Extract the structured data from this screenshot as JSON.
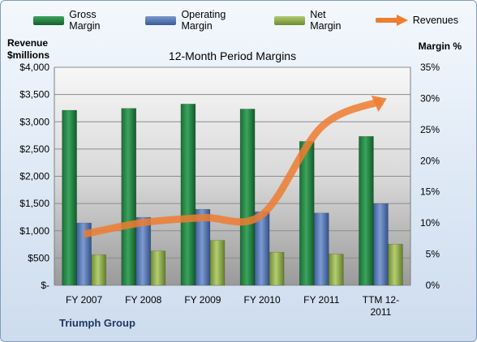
{
  "legend": {
    "items": [
      {
        "label": "Gross Margin",
        "color": "#1e7a3c"
      },
      {
        "label": "Operating Margin",
        "color": "#4f72b0"
      },
      {
        "label": "Net Margin",
        "color": "#8fae48"
      },
      {
        "label": "Revenues",
        "color": "#ed7d31"
      }
    ]
  },
  "company": "Triumph Group",
  "chart_data": {
    "type": "bar",
    "title": "12-Month Period Margins",
    "ylabel_left": [
      "Revenue",
      "$millions"
    ],
    "ylabel_right": "Margin %",
    "categories": [
      [
        "FY 2007"
      ],
      [
        "FY 2008"
      ],
      [
        "FY 2009"
      ],
      [
        "FY 2010"
      ],
      [
        "FY 2011"
      ],
      [
        "TTM 12-",
        "2011"
      ]
    ],
    "left_axis": {
      "min": 0,
      "max": 4000,
      "ticks": [
        "$-",
        "$500",
        "$1,000",
        "$1,500",
        "$2,000",
        "$2,500",
        "$3,000",
        "$3,500",
        "$4,000"
      ]
    },
    "right_axis": {
      "min": 0,
      "max": 35,
      "ticks": [
        "0%",
        "5%",
        "10%",
        "15%",
        "20%",
        "25%",
        "30%",
        "35%"
      ]
    },
    "series": [
      {
        "name": "Gross Margin",
        "axis": "right",
        "kind": "bar",
        "color": "#1e7a3c",
        "values": [
          28.1,
          28.4,
          29.1,
          28.3,
          23.1,
          23.9
        ]
      },
      {
        "name": "Operating Margin",
        "axis": "right",
        "kind": "bar",
        "color": "#4f72b0",
        "values": [
          10.0,
          10.9,
          12.2,
          11.8,
          11.6,
          13.1
        ]
      },
      {
        "name": "Net Margin",
        "axis": "right",
        "kind": "bar",
        "color": "#8fae48",
        "values": [
          4.9,
          5.5,
          7.2,
          5.3,
          5.0,
          6.6
        ]
      },
      {
        "name": "Revenues",
        "axis": "left",
        "kind": "line",
        "color": "#ed7d31",
        "values": [
          937,
          1151,
          1240,
          1295,
          2905,
          3380
        ]
      }
    ],
    "grid": true,
    "legend_position": "top"
  }
}
